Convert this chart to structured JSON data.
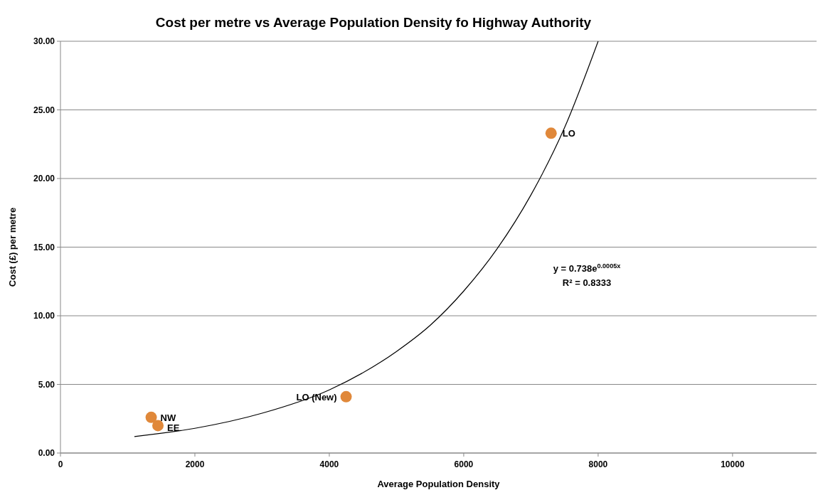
{
  "chart_data": {
    "type": "scatter",
    "title": "Cost per metre vs Average Population Density fo Highway Authority",
    "xlabel": "Average Population Density",
    "ylabel": "Cost (£) per metre",
    "xlim": [
      0,
      11250
    ],
    "xticks": [
      0,
      2000,
      4000,
      6000,
      8000,
      10000
    ],
    "ylim": [
      0,
      30
    ],
    "yticks": [
      {
        "value": 0,
        "label": "0.00"
      },
      {
        "value": 5,
        "label": "5.00"
      },
      {
        "value": 10,
        "label": "10.00"
      },
      {
        "value": 15,
        "label": "15.00"
      },
      {
        "value": 20,
        "label": "20.00"
      },
      {
        "value": 25,
        "label": "25.00"
      },
      {
        "value": 30,
        "label": "30.00"
      }
    ],
    "grid": "y",
    "marker": "circle",
    "series": [
      {
        "color": "#e0883a",
        "x": [
          1350,
          1450,
          4250,
          7300
        ],
        "values": [
          2.6,
          2.0,
          4.1,
          23.3
        ]
      },
      {
        "type": "line",
        "color": "#000000",
        "marker": "none",
        "line_style": "solid",
        "x": [
          1100,
          2000,
          3000,
          4000,
          5000,
          5500,
          6000,
          6500,
          7000,
          7500,
          8000
        ],
        "values": [
          1.2,
          1.8,
          2.9,
          4.6,
          7.4,
          9.3,
          11.8,
          14.9,
          18.8,
          23.7,
          30
        ]
      }
    ],
    "annotations": [
      {
        "text": "NW",
        "x": 1350,
        "y": 2.6
      },
      {
        "text": "EE",
        "x": 1450,
        "y": 2.0
      },
      {
        "text": "LO (New)",
        "x": 4250,
        "y": 4.1
      },
      {
        "text": "LO",
        "x": 7300,
        "y": 23.3
      },
      "y = 0.738e$^{0.0005x}$",
      "R² = 0.8333"
    ]
  }
}
